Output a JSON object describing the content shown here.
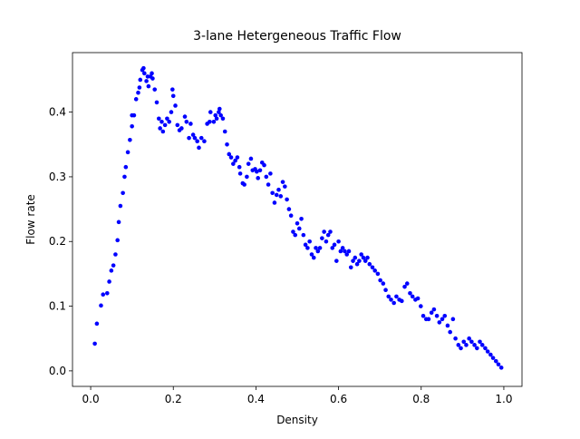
{
  "chart_data": {
    "type": "scatter",
    "title": "3-lane Hetergeneous Traffic Flow",
    "x_label": "Density",
    "y_label": "Flow rate",
    "xlim": [
      -0.044,
      1.044
    ],
    "ylim": [
      -0.024,
      0.492
    ],
    "xticks": [
      {
        "value": 0,
        "label": "0.0"
      },
      0.2,
      0.4,
      0.6,
      0.8,
      {
        "value": 1,
        "label": "1.0"
      }
    ],
    "yticks": [
      {
        "value": 0,
        "label": "0.0"
      },
      0.1,
      0.2,
      0.3,
      0.4
    ],
    "x": [
      0.01,
      0.015,
      0.025,
      0.03,
      0.04,
      0.045,
      0.05,
      0.055,
      0.06,
      0.065,
      0.068,
      0.072,
      0.078,
      0.082,
      0.085,
      0.09,
      0.095,
      0.1,
      0.1,
      0.105,
      0.11,
      0.115,
      0.118,
      0.12,
      0.125,
      0.128,
      0.13,
      0.135,
      0.138,
      0.14,
      0.145,
      0.148,
      0.15,
      0.155,
      0.16,
      0.165,
      0.168,
      0.172,
      0.175,
      0.18,
      0.185,
      0.19,
      0.195,
      0.198,
      0.2,
      0.205,
      0.21,
      0.215,
      0.22,
      0.228,
      0.232,
      0.238,
      0.242,
      0.248,
      0.252,
      0.258,
      0.262,
      0.268,
      0.275,
      0.282,
      0.288,
      0.29,
      0.298,
      0.302,
      0.305,
      0.31,
      0.312,
      0.315,
      0.32,
      0.325,
      0.33,
      0.335,
      0.34,
      0.345,
      0.35,
      0.355,
      0.36,
      0.362,
      0.368,
      0.372,
      0.378,
      0.382,
      0.388,
      0.392,
      0.398,
      0.402,
      0.405,
      0.41,
      0.415,
      0.42,
      0.425,
      0.43,
      0.435,
      0.44,
      0.445,
      0.45,
      0.455,
      0.46,
      0.465,
      0.47,
      0.475,
      0.48,
      0.485,
      0.49,
      0.495,
      0.5,
      0.505,
      0.51,
      0.515,
      0.52,
      0.525,
      0.53,
      0.535,
      0.54,
      0.545,
      0.55,
      0.555,
      0.56,
      0.565,
      0.57,
      0.575,
      0.58,
      0.585,
      0.59,
      0.595,
      0.6,
      0.605,
      0.61,
      0.615,
      0.62,
      0.625,
      0.63,
      0.635,
      0.64,
      0.645,
      0.65,
      0.655,
      0.66,
      0.665,
      0.67,
      0.675,
      0.682,
      0.688,
      0.695,
      0.701,
      0.708,
      0.714,
      0.721,
      0.727,
      0.734,
      0.74,
      0.747,
      0.753,
      0.76,
      0.766,
      0.773,
      0.779,
      0.786,
      0.792,
      0.799,
      0.805,
      0.812,
      0.818,
      0.825,
      0.831,
      0.838,
      0.844,
      0.851,
      0.857,
      0.864,
      0.87,
      0.877,
      0.883,
      0.89,
      0.896,
      0.903,
      0.909,
      0.916,
      0.922,
      0.929,
      0.935,
      0.942,
      0.948,
      0.955,
      0.961,
      0.968,
      0.974,
      0.981,
      0.987,
      0.994
    ],
    "series": [
      {
        "color": "#0000ff",
        "values": [
          0.042,
          0.073,
          0.101,
          0.118,
          0.12,
          0.138,
          0.155,
          0.163,
          0.18,
          0.202,
          0.23,
          0.255,
          0.275,
          0.3,
          0.315,
          0.338,
          0.357,
          0.378,
          0.395,
          0.395,
          0.42,
          0.43,
          0.438,
          0.45,
          0.465,
          0.468,
          0.46,
          0.448,
          0.455,
          0.44,
          0.455,
          0.46,
          0.452,
          0.435,
          0.415,
          0.39,
          0.375,
          0.385,
          0.37,
          0.38,
          0.39,
          0.385,
          0.4,
          0.435,
          0.425,
          0.41,
          0.38,
          0.372,
          0.375,
          0.393,
          0.385,
          0.36,
          0.382,
          0.365,
          0.36,
          0.355,
          0.345,
          0.36,
          0.355,
          0.382,
          0.385,
          0.4,
          0.385,
          0.395,
          0.39,
          0.4,
          0.405,
          0.395,
          0.39,
          0.37,
          0.35,
          0.335,
          0.33,
          0.32,
          0.325,
          0.33,
          0.315,
          0.305,
          0.29,
          0.288,
          0.3,
          0.32,
          0.328,
          0.31,
          0.312,
          0.308,
          0.298,
          0.31,
          0.322,
          0.318,
          0.3,
          0.288,
          0.305,
          0.275,
          0.26,
          0.272,
          0.28,
          0.27,
          0.292,
          0.285,
          0.265,
          0.25,
          0.24,
          0.215,
          0.21,
          0.228,
          0.22,
          0.235,
          0.21,
          0.195,
          0.19,
          0.2,
          0.18,
          0.175,
          0.19,
          0.185,
          0.19,
          0.205,
          0.215,
          0.2,
          0.21,
          0.215,
          0.19,
          0.195,
          0.17,
          0.2,
          0.185,
          0.19,
          0.185,
          0.18,
          0.185,
          0.16,
          0.17,
          0.175,
          0.165,
          0.17,
          0.18,
          0.175,
          0.17,
          0.175,
          0.165,
          0.16,
          0.155,
          0.15,
          0.14,
          0.135,
          0.125,
          0.115,
          0.11,
          0.105,
          0.115,
          0.11,
          0.108,
          0.13,
          0.135,
          0.12,
          0.115,
          0.11,
          0.112,
          0.1,
          0.085,
          0.08,
          0.08,
          0.09,
          0.095,
          0.085,
          0.075,
          0.08,
          0.085,
          0.07,
          0.06,
          0.08,
          0.05,
          0.04,
          0.035,
          0.045,
          0.04,
          0.05,
          0.045,
          0.04,
          0.035,
          0.045,
          0.04,
          0.035,
          0.03,
          0.025,
          0.02,
          0.015,
          0.01,
          0.005
        ]
      }
    ]
  }
}
